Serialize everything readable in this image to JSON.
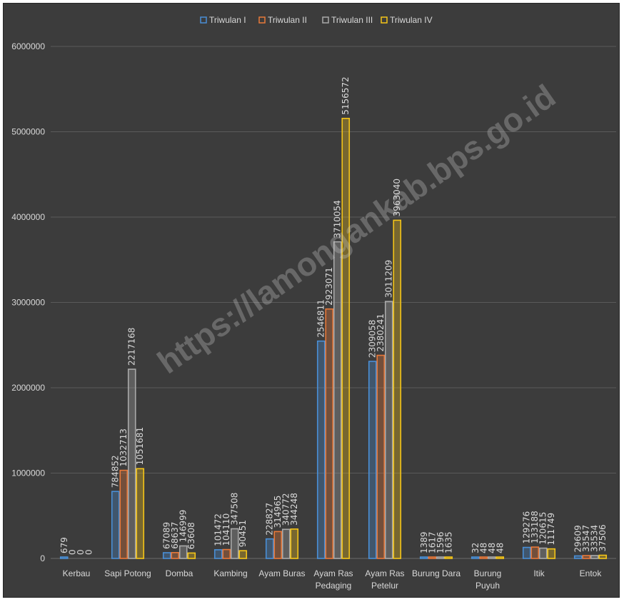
{
  "watermark": "https://lamongankab.bps.go.id",
  "chart_data": {
    "type": "bar",
    "title": "",
    "xlabel": "",
    "ylabel": "",
    "ylim": [
      0,
      6000000
    ],
    "yticks": [
      "0",
      "1000000",
      "2000000",
      "3000000",
      "4000000",
      "5000000",
      "6000000"
    ],
    "legend_position": "top",
    "grid": true,
    "categories": [
      "Kerbau",
      "Sapi Potong",
      "Domba",
      "Kambing",
      "Ayam Buras",
      "Ayam Ras Pedaging",
      "Ayam Ras Petelur",
      "Burung Dara",
      "Burung Puyuh",
      "Itik",
      "Entok"
    ],
    "series": [
      {
        "name": "Triwulan I",
        "color": "#4a8fd6",
        "values": [
          679,
          784852,
          67089,
          101472,
          228827,
          2546811,
          2309058,
          1389,
          32,
          129276,
          29609
        ],
        "labels": [
          "679",
          "784852",
          "67089",
          "101472",
          "228827",
          "2546811",
          "2309058",
          "1389",
          "32",
          "129276",
          "29609"
        ]
      },
      {
        "name": "Triwulan II",
        "color": "#e8793a",
        "values": [
          0,
          1032713,
          68637,
          104110,
          314965,
          2923071,
          2380241,
          1617,
          48,
          133188,
          33547
        ],
        "labels": [
          "0",
          "1032713",
          "68637",
          "104110",
          "314965",
          "2923071",
          "2380241",
          "1617",
          "48",
          "133188",
          "33547"
        ]
      },
      {
        "name": "Triwulan III",
        "color": "#a9a9a9",
        "values": [
          0,
          2217168,
          146999,
          347508,
          340772,
          3710054,
          3011209,
          1596,
          48,
          120615,
          33534
        ],
        "labels": [
          "0",
          "2217168",
          "146999",
          "347508",
          "340772",
          "3710054",
          "3011209",
          "1596",
          "48",
          "120615",
          "33534"
        ]
      },
      {
        "name": "Triwulan IV",
        "color": "#f5c518",
        "values": [
          0,
          1051681,
          63608,
          90451,
          344248,
          5156572,
          3963040,
          1635,
          48,
          111749,
          37506
        ],
        "labels": [
          "0",
          "1051681",
          "63608",
          "90451",
          "344248",
          "5156572",
          "3963040",
          "1635",
          "48",
          "111749",
          "37506"
        ]
      }
    ]
  }
}
